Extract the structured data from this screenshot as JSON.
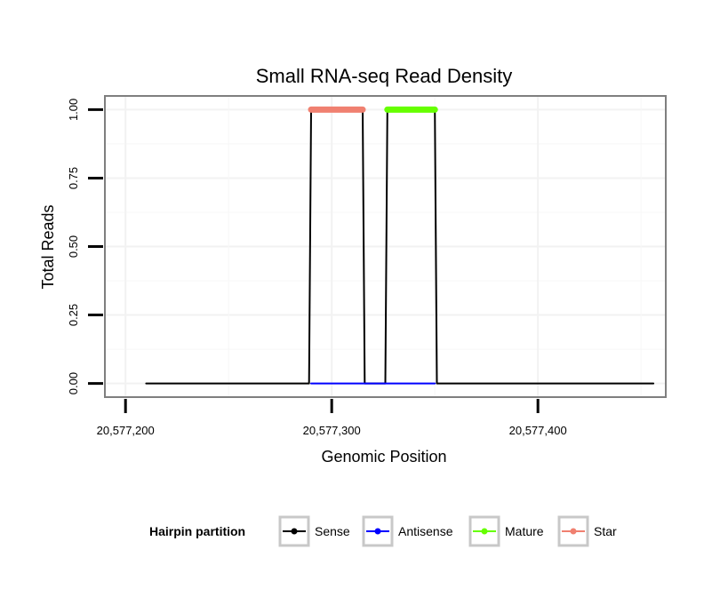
{
  "chart_data": {
    "type": "line",
    "title": "Small RNA-seq Read Density",
    "xlabel": "Genomic Position",
    "ylabel": "Total Reads",
    "xlim": [
      20577190,
      20577462
    ],
    "ylim": [
      -0.05,
      1.05
    ],
    "x_ticks": [
      20577200,
      20577300,
      20577400
    ],
    "x_tick_labels": [
      "20,577,200",
      "20,577,300",
      "20,577,400"
    ],
    "y_ticks": [
      0.0,
      0.25,
      0.5,
      0.75,
      1.0
    ],
    "y_tick_labels": [
      "0.00",
      "0.25",
      "0.50",
      "0.75",
      "1.00"
    ],
    "grid": true,
    "legend": {
      "title": "Hairpin partition",
      "position": "bottom",
      "entries": [
        {
          "name": "Sense",
          "color": "#000000"
        },
        {
          "name": "Antisense",
          "color": "#0000ff"
        },
        {
          "name": "Mature",
          "color": "#66ff00"
        },
        {
          "name": "Star",
          "color": "#f08070"
        }
      ]
    },
    "series": [
      {
        "name": "Sense",
        "color": "#000000",
        "x": [
          20577210,
          20577289,
          20577290,
          20577315,
          20577316,
          20577326,
          20577327,
          20577350,
          20577351,
          20577456
        ],
        "values": [
          0,
          0,
          1,
          1,
          0,
          0,
          1,
          1,
          0,
          0
        ]
      },
      {
        "name": "Antisense",
        "color": "#0000ff",
        "x": [
          20577290,
          20577350
        ],
        "values": [
          0,
          0
        ]
      },
      {
        "name": "Mature",
        "color": "#66ff00",
        "x": [
          20577327,
          20577350
        ],
        "values": [
          1,
          1
        ]
      },
      {
        "name": "Star",
        "color": "#f08070",
        "x": [
          20577290,
          20577315
        ],
        "values": [
          1,
          1
        ]
      }
    ]
  }
}
